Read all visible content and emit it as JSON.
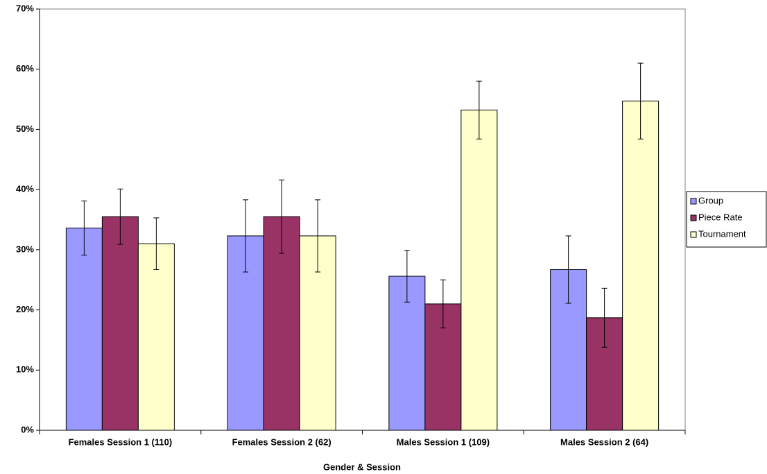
{
  "chart_data": {
    "type": "bar",
    "x_label": "Gender & Session",
    "categories": [
      "Females Session 1 (110)",
      "Females Session 2 (62)",
      "Males Session 1 (109)",
      "Males Session 2 (64)"
    ],
    "series": [
      {
        "name": "Group",
        "color": "#9999ff",
        "values": [
          33.6,
          32.3,
          25.6,
          26.7
        ],
        "errors": [
          4.5,
          6.0,
          4.3,
          5.6
        ]
      },
      {
        "name": "Piece Rate",
        "color": "#993366",
        "values": [
          35.5,
          35.5,
          21.0,
          18.7
        ],
        "errors": [
          4.6,
          6.1,
          4.0,
          4.9
        ]
      },
      {
        "name": "Tournament",
        "color": "#ffffcc",
        "values": [
          31.0,
          32.3,
          53.2,
          54.7
        ],
        "errors": [
          4.3,
          6.0,
          4.8,
          6.3
        ]
      }
    ],
    "ylim": [
      0,
      70
    ],
    "yticks": [
      {
        "value": 0,
        "label": "0%"
      },
      {
        "value": 10,
        "label": "10%"
      },
      {
        "value": 20,
        "label": "20%"
      },
      {
        "value": 30,
        "label": "30%"
      },
      {
        "value": 40,
        "label": "40%"
      },
      {
        "value": 50,
        "label": "50%"
      },
      {
        "value": 60,
        "label": "60%"
      },
      {
        "value": 70,
        "label": "70%"
      }
    ],
    "grid": false,
    "legend": "right"
  }
}
